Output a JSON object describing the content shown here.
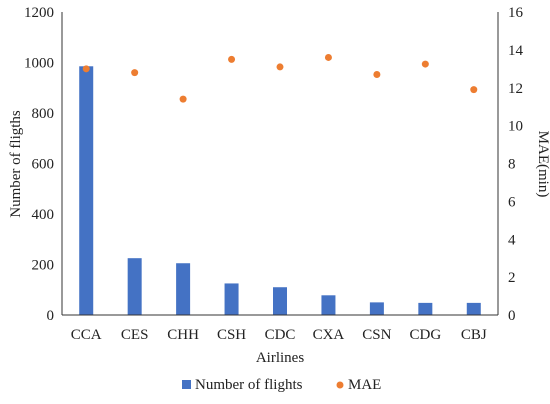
{
  "chart_data": {
    "type": "bar",
    "categories": [
      "CCA",
      "CES",
      "CHH",
      "CSH",
      "CDC",
      "CXA",
      "CSN",
      "CDG",
      "CBJ"
    ],
    "series": [
      {
        "name": "Number of flights",
        "type": "bar",
        "axis": "left",
        "color": "#4472C4",
        "values": [
          985,
          225,
          205,
          125,
          110,
          78,
          50,
          48,
          48
        ]
      },
      {
        "name": "MAE",
        "type": "scatter",
        "axis": "right",
        "color": "#ED7D31",
        "values": [
          13.0,
          12.8,
          11.4,
          13.5,
          13.1,
          13.6,
          12.7,
          13.25,
          11.9
        ]
      }
    ],
    "xlabel": "Airlines",
    "ylabel": "Number of fligths",
    "y2label": "MAE(min)",
    "ylim": [
      0,
      1200
    ],
    "y2lim": [
      0,
      16
    ],
    "yticks": [
      "0",
      "200",
      "400",
      "600",
      "800",
      "1000",
      "1200"
    ],
    "y2ticks": [
      "0",
      "2",
      "4",
      "6",
      "8",
      "10",
      "12",
      "14",
      "16"
    ],
    "grid": false,
    "legend": "bottom-center"
  }
}
